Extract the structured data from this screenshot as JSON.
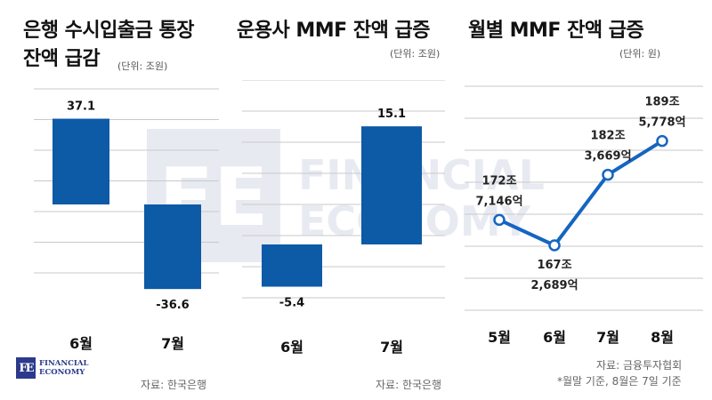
{
  "brand": {
    "mark": "FE",
    "line1": "FINANCIAL",
    "line2": "ECONOMY"
  },
  "charts": {
    "left": {
      "title_line1": "은행 수시입출금 통장",
      "title_line2": "잔액 급감",
      "unit": "(단위: 조원)",
      "source": "자료: 한국은행"
    },
    "mid": {
      "title": "운용사 MMF 잔액 급증",
      "unit": "(단위: 조원)",
      "source": "자료: 한국은행"
    },
    "right": {
      "title": "월별 MMF 잔액 급증",
      "unit": "(단위: 원)",
      "source": "자료: 금융투자협회",
      "note": "*월말 기준, 8월은 7일 기준"
    }
  },
  "chart_data": [
    {
      "type": "bar",
      "title": "은행 수시입출금 통장 잔액 급감",
      "unit": "조원",
      "categories": [
        "6월",
        "7월"
      ],
      "values": [
        37.1,
        -36.6
      ],
      "labels": [
        "37.1",
        "-36.6"
      ],
      "color": "#0d5aa7",
      "grid": true
    },
    {
      "type": "bar",
      "title": "운용사 MMF 잔액 급증",
      "unit": "조원",
      "categories": [
        "6월",
        "7월"
      ],
      "values": [
        -5.4,
        15.1
      ],
      "labels": [
        "-5.4",
        "15.1"
      ],
      "color": "#0d5aa7",
      "grid": true
    },
    {
      "type": "line",
      "title": "월별 MMF 잔액 급증",
      "unit": "원",
      "categories": [
        "5월",
        "6월",
        "7월",
        "8월"
      ],
      "values": [
        172.7146,
        167.2689,
        182.3669,
        189.5778
      ],
      "labels": [
        [
          "172조",
          "7,146억"
        ],
        [
          "167조",
          "2,689억"
        ],
        [
          "182조",
          "3,669억"
        ],
        [
          "189조",
          "5,778억"
        ]
      ],
      "color": "#1565c0",
      "grid": true
    }
  ]
}
